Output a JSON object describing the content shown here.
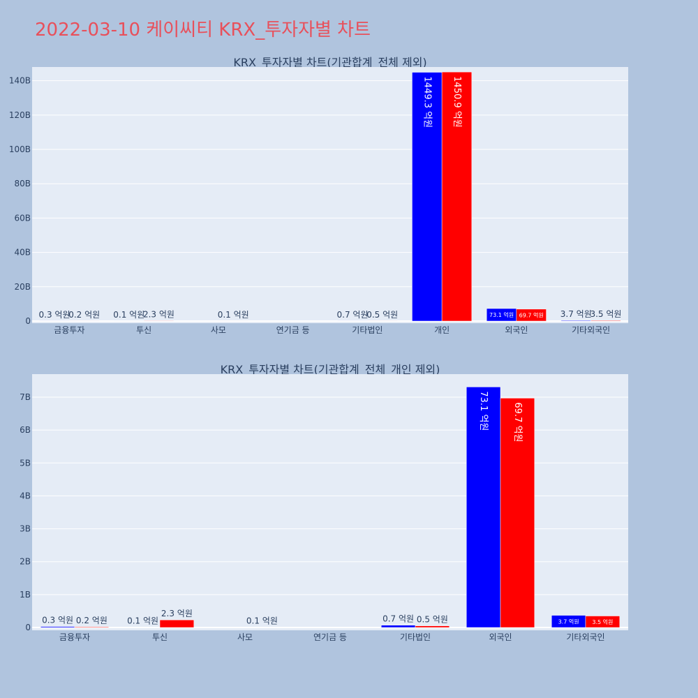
{
  "page": {
    "title": "2022-03-10 케이씨티 KRX_투자자별 차트"
  },
  "colors": {
    "background": "#b0c4de",
    "plot_bg": "#e5ecf6",
    "title": "#e8505b",
    "text": "#2a3f5f",
    "series_blue": "#0000ff",
    "series_red": "#ff0000"
  },
  "chart_data": [
    {
      "type": "bar",
      "title": "KRX_투자자별 차트(기관합계_전체 제외)",
      "categories": [
        "금융투자",
        "투신",
        "사모",
        "연기금 등",
        "기타법인",
        "개인",
        "외국인",
        "기타외국인"
      ],
      "series": [
        {
          "color": "#0000ff",
          "values": [
            0.03,
            0.01,
            0,
            0,
            0.07,
            144.93,
            7.31,
            0.37
          ],
          "labels": [
            "0.3 억원",
            "0.1 억원",
            "",
            "",
            "0.7 억원",
            "1449.3 억원",
            "73.1 억원",
            "3.7 억원"
          ]
        },
        {
          "color": "#ff0000",
          "values": [
            0.02,
            0.23,
            0.01,
            0,
            0.05,
            145.09,
            6.97,
            0.35
          ],
          "labels": [
            "0.2 억원",
            "2.3 억원",
            "0.1 억원",
            "",
            "0.5 억원",
            "1450.9 억원",
            "69.7 억원",
            "3.5 억원"
          ]
        }
      ],
      "yticks": [
        0,
        20,
        40,
        60,
        80,
        100,
        120,
        140
      ],
      "ytick_labels": [
        "0",
        "20B",
        "40B",
        "60B",
        "80B",
        "100B",
        "120B",
        "140B"
      ],
      "ylim": [
        0,
        148
      ],
      "grid": true,
      "xlabel": "",
      "ylabel": ""
    },
    {
      "type": "bar",
      "title": "KRX_투자자별 차트(기관합계_전체_개인 제외)",
      "categories": [
        "금융투자",
        "투신",
        "사모",
        "연기금 등",
        "기타법인",
        "외국인",
        "기타외국인"
      ],
      "series": [
        {
          "color": "#0000ff",
          "values": [
            0.03,
            0.01,
            0,
            0,
            0.07,
            7.31,
            0.37
          ],
          "labels": [
            "0.3 억원",
            "0.1 억원",
            "",
            "",
            "0.7 억원",
            "73.1 억원",
            "3.7 억원"
          ]
        },
        {
          "color": "#ff0000",
          "values": [
            0.02,
            0.23,
            0.01,
            0,
            0.05,
            6.97,
            0.35
          ],
          "labels": [
            "0.2 억원",
            "2.3 억원",
            "0.1 억원",
            "",
            "0.5 억원",
            "69.7 억원",
            "3.5 억원"
          ]
        }
      ],
      "yticks": [
        0,
        1,
        2,
        3,
        4,
        5,
        6,
        7
      ],
      "ytick_labels": [
        "0",
        "1B",
        "2B",
        "3B",
        "4B",
        "5B",
        "6B",
        "7B"
      ],
      "ylim": [
        0,
        7.7
      ],
      "grid": true,
      "xlabel": "",
      "ylabel": ""
    }
  ]
}
